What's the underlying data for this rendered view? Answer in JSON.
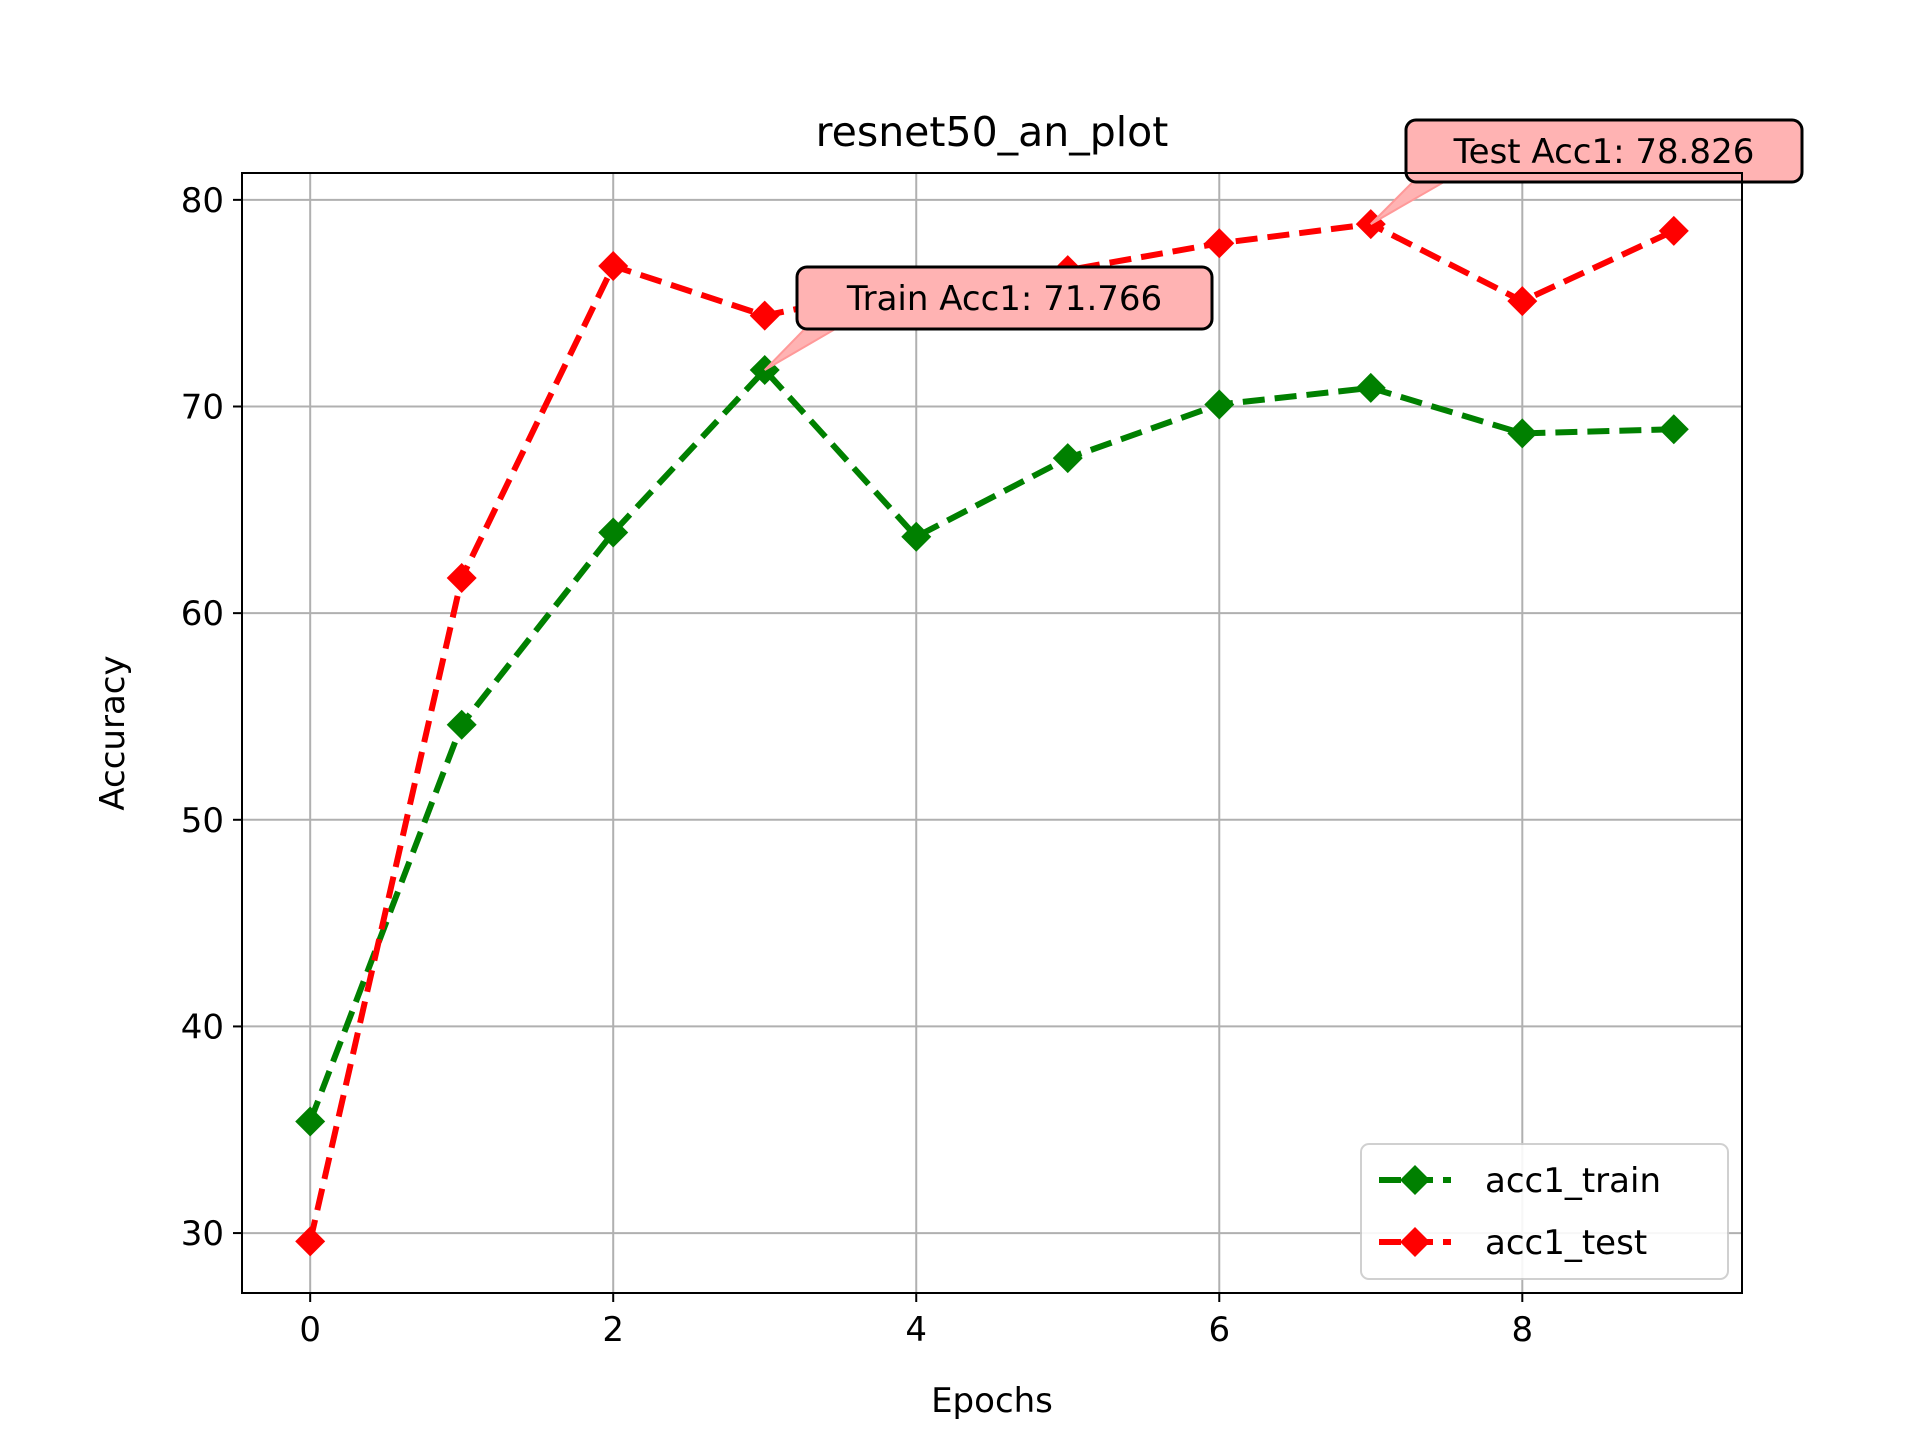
{
  "chart_data": {
    "type": "line",
    "title": "resnet50_an_plot",
    "xlabel": "Epochs",
    "ylabel": "Accuracy",
    "x": [
      0,
      1,
      2,
      3,
      4,
      5,
      6,
      7,
      8,
      9
    ],
    "xlim": [
      -0.45,
      9.45
    ],
    "ylim": [
      27.1,
      81.3
    ],
    "xticks": [
      0,
      2,
      4,
      6,
      8
    ],
    "yticks": [
      30,
      40,
      50,
      60,
      70,
      80
    ],
    "grid": true,
    "legend_position": "lower-right",
    "series": [
      {
        "name": "acc1_train",
        "color": "#008000",
        "linestyle": "dashed",
        "marker": "diamond",
        "values": [
          35.4,
          54.6,
          63.9,
          71.766,
          63.7,
          67.5,
          70.1,
          70.9,
          68.7,
          68.9
        ]
      },
      {
        "name": "acc1_test",
        "color": "#ff0000",
        "linestyle": "dashed",
        "marker": "diamond",
        "values": [
          29.6,
          61.7,
          76.8,
          74.4,
          75.9,
          76.6,
          77.9,
          78.826,
          75.1,
          78.5
        ]
      }
    ],
    "annotations": [
      {
        "text": "Train Acc1: 71.766",
        "series": "acc1_train",
        "x": 3,
        "y": 71.766,
        "fill": "#ffb3b3",
        "arrow_color": "#ff9999"
      },
      {
        "text": "Test Acc1: 78.826",
        "series": "acc1_test",
        "x": 7,
        "y": 78.826,
        "fill": "#ffb3b3",
        "arrow_color": "#ff9999"
      }
    ]
  }
}
